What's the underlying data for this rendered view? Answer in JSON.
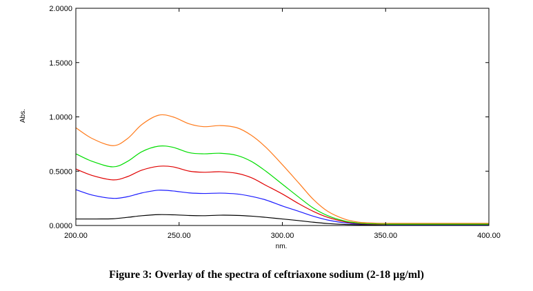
{
  "figure_caption": "Figure 3: Overlay of the spectra of ceftriaxone sodium (2-18 µg/ml)",
  "chart_data": {
    "type": "line",
    "title": "",
    "xlabel": "nm.",
    "ylabel": "Abs.",
    "xlim": [
      200,
      400
    ],
    "ylim": [
      0,
      2
    ],
    "x_ticks": [
      200,
      250,
      300,
      350,
      400
    ],
    "x_tick_labels": [
      "200.00",
      "250.00",
      "300.00",
      "350.00",
      "400.00"
    ],
    "y_ticks": [
      0,
      0.5,
      1.0,
      1.5,
      2.0
    ],
    "y_tick_labels": [
      "0.0000",
      "0.5000",
      "1.0000",
      "1.5000",
      "2.0000"
    ],
    "grid": false,
    "colors": {
      "black": "#000000",
      "blue": "#1a1aff",
      "red": "#e00000",
      "green": "#00dd00",
      "orange": "#ff7a1a"
    },
    "series": [
      {
        "color": "#000000",
        "x": [
          200,
          210,
          218,
          225,
          232,
          240,
          248,
          255,
          262,
          270,
          278,
          285,
          292,
          300,
          308,
          315,
          322,
          330,
          340,
          350,
          360,
          380,
          400
        ],
        "y": [
          0.06,
          0.06,
          0.062,
          0.075,
          0.09,
          0.1,
          0.098,
          0.092,
          0.09,
          0.095,
          0.093,
          0.086,
          0.075,
          0.06,
          0.045,
          0.03,
          0.018,
          0.01,
          0.006,
          0.004,
          0.003,
          0.003,
          0.003
        ]
      },
      {
        "color": "#1a1aff",
        "x": [
          200,
          208,
          218,
          225,
          232,
          240,
          247,
          255,
          262,
          270,
          278,
          285,
          292,
          300,
          308,
          315,
          322,
          330,
          337,
          345,
          352,
          360,
          380,
          400
        ],
        "y": [
          0.33,
          0.28,
          0.25,
          0.265,
          0.3,
          0.325,
          0.318,
          0.3,
          0.295,
          0.298,
          0.29,
          0.268,
          0.235,
          0.18,
          0.13,
          0.085,
          0.05,
          0.025,
          0.014,
          0.01,
          0.008,
          0.008,
          0.008,
          0.008
        ]
      },
      {
        "color": "#e00000",
        "x": [
          200,
          208,
          218,
          225,
          232,
          240,
          247,
          255,
          262,
          270,
          278,
          285,
          292,
          300,
          308,
          315,
          322,
          330,
          337,
          345,
          352,
          360,
          380,
          400
        ],
        "y": [
          0.52,
          0.46,
          0.42,
          0.45,
          0.51,
          0.545,
          0.54,
          0.5,
          0.49,
          0.495,
          0.48,
          0.44,
          0.37,
          0.29,
          0.2,
          0.13,
          0.075,
          0.035,
          0.018,
          0.012,
          0.01,
          0.01,
          0.01,
          0.01
        ]
      },
      {
        "color": "#00dd00",
        "x": [
          200,
          208,
          218,
          225,
          232,
          240,
          247,
          255,
          262,
          270,
          278,
          285,
          292,
          300,
          308,
          315,
          322,
          330,
          337,
          345,
          352,
          360,
          380,
          400
        ],
        "y": [
          0.66,
          0.59,
          0.54,
          0.59,
          0.68,
          0.73,
          0.72,
          0.67,
          0.66,
          0.665,
          0.645,
          0.59,
          0.5,
          0.38,
          0.26,
          0.16,
          0.09,
          0.042,
          0.022,
          0.015,
          0.012,
          0.012,
          0.012,
          0.012
        ]
      },
      {
        "color": "#ff7a1a",
        "x": [
          200,
          208,
          218,
          225,
          232,
          240,
          247,
          255,
          262,
          270,
          278,
          285,
          292,
          300,
          308,
          315,
          322,
          330,
          337,
          345,
          352,
          360,
          380,
          400
        ],
        "y": [
          0.9,
          0.8,
          0.735,
          0.8,
          0.93,
          1.015,
          1.0,
          0.935,
          0.91,
          0.92,
          0.9,
          0.83,
          0.72,
          0.56,
          0.39,
          0.24,
          0.13,
          0.06,
          0.03,
          0.022,
          0.02,
          0.02,
          0.02,
          0.02
        ]
      }
    ]
  }
}
